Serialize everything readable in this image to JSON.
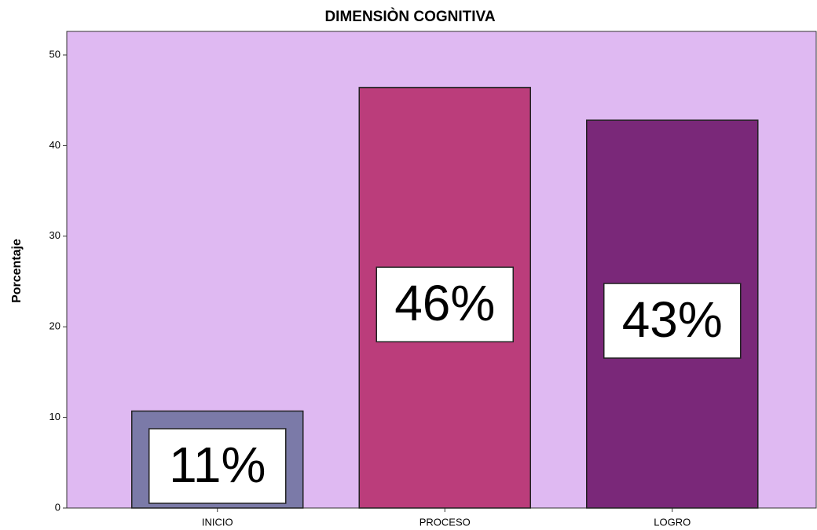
{
  "chart_data": {
    "type": "bar",
    "title": "DIMENSIÒN COGNITIVA",
    "y_label": "Porcentaje",
    "categories": [
      "INICIO",
      "PROCESO",
      "LOGRO"
    ],
    "values": [
      10.7,
      46.4,
      42.8
    ],
    "value_labels": [
      "11%",
      "46%",
      "43%"
    ],
    "colors": [
      "#7b7aa8",
      "#bb3d7b",
      "#7a2879"
    ],
    "background": "#dfb9f2",
    "ylim": [
      0,
      52.6
    ],
    "yticks": [
      0,
      10,
      20,
      30,
      40,
      50
    ],
    "grid": false
  }
}
